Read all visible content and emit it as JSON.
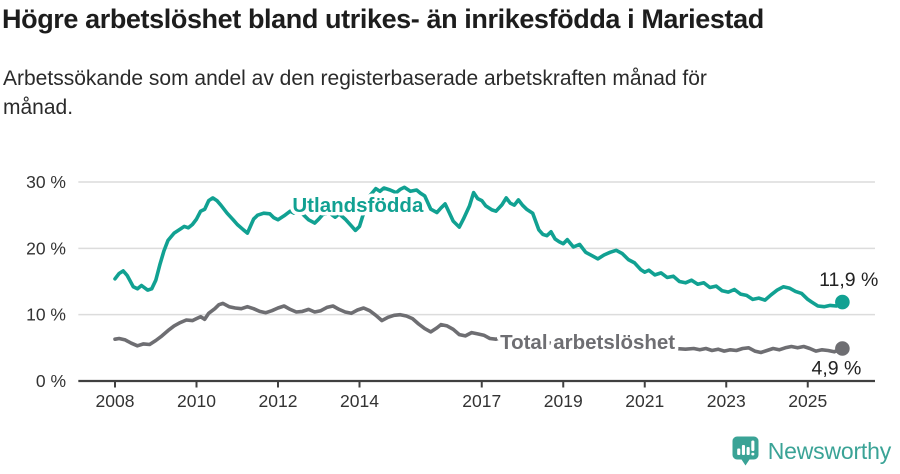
{
  "header": {
    "title": "Högre arbetslöshet bland utrikes- än inrikesfödda i Mariestad",
    "subtitle": "Arbetssökande som andel av den registerbaserade arbetskraften månad för månad.",
    "subtitle_lines": [
      "Arbetssökande som andel av den registerbaserade arbetskraften månad för",
      "månad."
    ]
  },
  "footer": {
    "brand": "Newsworthy",
    "brand_color": "#3aa396",
    "logo_icon": "bar-chart-speech-bubble-icon"
  },
  "chart_data": {
    "type": "line",
    "title": "Högre arbetslöshet bland utrikes- än inrikesfödda i Mariestad",
    "subtitle": "Arbetssökande som andel av den registerbaserade arbetskraften månad för månad.",
    "unit": "%",
    "grid": "horizontal",
    "x_axis_range": [
      2007.1,
      2026.65
    ],
    "ylim": [
      0,
      30
    ],
    "x_ticks": [
      2008,
      2010,
      2012,
      2014,
      2017,
      2019,
      2021,
      2023,
      2025
    ],
    "y_ticks": [
      {
        "value": 0,
        "label": "0 %"
      },
      {
        "value": 10,
        "label": "10 %"
      },
      {
        "value": 20,
        "label": "20 %"
      },
      {
        "value": 30,
        "label": "30 %"
      }
    ],
    "colors": {
      "utlandsfodda": "#11a192",
      "total": "#6e6e72",
      "grid": "#dcdcdc",
      "axis": "#404040",
      "value_label": "#222222"
    },
    "series": [
      {
        "name": "Utlandsfödda",
        "color": "#11a192",
        "end_label": "11,9 %",
        "last_value": 11.9,
        "annotation": {
          "text": "Utlandsfödda",
          "x": 2013.96,
          "y": 25.5,
          "anchor": "middle"
        },
        "points": [
          [
            2008.0,
            15.4
          ],
          [
            2008.1,
            16.2
          ],
          [
            2008.2,
            16.6
          ],
          [
            2008.3,
            15.9
          ],
          [
            2008.45,
            14.2
          ],
          [
            2008.55,
            13.9
          ],
          [
            2008.65,
            14.4
          ],
          [
            2008.8,
            13.7
          ],
          [
            2008.9,
            13.9
          ],
          [
            2009.0,
            15.2
          ],
          [
            2009.1,
            17.5
          ],
          [
            2009.2,
            19.6
          ],
          [
            2009.3,
            21.2
          ],
          [
            2009.45,
            22.3
          ],
          [
            2009.6,
            22.9
          ],
          [
            2009.7,
            23.3
          ],
          [
            2009.8,
            23.1
          ],
          [
            2009.9,
            23.6
          ],
          [
            2010.0,
            24.4
          ],
          [
            2010.1,
            25.6
          ],
          [
            2010.2,
            25.9
          ],
          [
            2010.3,
            27.2
          ],
          [
            2010.4,
            27.6
          ],
          [
            2010.5,
            27.2
          ],
          [
            2010.6,
            26.5
          ],
          [
            2010.75,
            25.3
          ],
          [
            2010.9,
            24.3
          ],
          [
            2011.0,
            23.6
          ],
          [
            2011.15,
            22.8
          ],
          [
            2011.25,
            22.3
          ],
          [
            2011.4,
            24.4
          ],
          [
            2011.5,
            25.0
          ],
          [
            2011.65,
            25.3
          ],
          [
            2011.8,
            25.2
          ],
          [
            2011.9,
            24.6
          ],
          [
            2012.0,
            24.3
          ],
          [
            2012.15,
            24.9
          ],
          [
            2012.3,
            25.6
          ],
          [
            2012.4,
            25.3
          ],
          [
            2012.5,
            25.9
          ],
          [
            2012.6,
            25.2
          ],
          [
            2012.75,
            24.3
          ],
          [
            2012.9,
            23.8
          ],
          [
            2013.0,
            24.4
          ],
          [
            2013.1,
            25.1
          ],
          [
            2013.25,
            25.4
          ],
          [
            2013.4,
            24.7
          ],
          [
            2013.5,
            25.2
          ],
          [
            2013.65,
            24.4
          ],
          [
            2013.8,
            23.4
          ],
          [
            2013.9,
            22.7
          ],
          [
            2014.0,
            23.3
          ],
          [
            2014.1,
            25.3
          ],
          [
            2014.25,
            27.9
          ],
          [
            2014.4,
            29.0
          ],
          [
            2014.5,
            28.6
          ],
          [
            2014.6,
            29.1
          ],
          [
            2014.75,
            28.8
          ],
          [
            2014.9,
            28.4
          ],
          [
            2015.0,
            28.9
          ],
          [
            2015.1,
            29.2
          ],
          [
            2015.25,
            28.6
          ],
          [
            2015.4,
            28.8
          ],
          [
            2015.5,
            28.3
          ],
          [
            2015.6,
            27.9
          ],
          [
            2015.75,
            25.9
          ],
          [
            2015.9,
            25.4
          ],
          [
            2016.0,
            26.1
          ],
          [
            2016.1,
            26.7
          ],
          [
            2016.2,
            25.4
          ],
          [
            2016.3,
            24.1
          ],
          [
            2016.45,
            23.2
          ],
          [
            2016.55,
            24.4
          ],
          [
            2016.7,
            26.4
          ],
          [
            2016.8,
            28.4
          ],
          [
            2016.9,
            27.5
          ],
          [
            2017.0,
            27.2
          ],
          [
            2017.1,
            26.4
          ],
          [
            2017.25,
            25.8
          ],
          [
            2017.35,
            25.6
          ],
          [
            2017.5,
            26.6
          ],
          [
            2017.6,
            27.6
          ],
          [
            2017.7,
            26.8
          ],
          [
            2017.8,
            26.5
          ],
          [
            2017.9,
            27.3
          ],
          [
            2018.0,
            26.5
          ],
          [
            2018.1,
            25.9
          ],
          [
            2018.25,
            25.3
          ],
          [
            2018.4,
            22.8
          ],
          [
            2018.5,
            22.1
          ],
          [
            2018.6,
            21.9
          ],
          [
            2018.7,
            22.5
          ],
          [
            2018.8,
            21.4
          ],
          [
            2018.9,
            21.0
          ],
          [
            2019.0,
            20.7
          ],
          [
            2019.1,
            21.3
          ],
          [
            2019.25,
            20.2
          ],
          [
            2019.4,
            20.6
          ],
          [
            2019.55,
            19.4
          ],
          [
            2019.7,
            18.9
          ],
          [
            2019.85,
            18.4
          ],
          [
            2020.0,
            19.0
          ],
          [
            2020.15,
            19.4
          ],
          [
            2020.3,
            19.7
          ],
          [
            2020.45,
            19.2
          ],
          [
            2020.6,
            18.3
          ],
          [
            2020.75,
            17.8
          ],
          [
            2020.9,
            16.8
          ],
          [
            2021.0,
            16.4
          ],
          [
            2021.1,
            16.7
          ],
          [
            2021.25,
            16.0
          ],
          [
            2021.4,
            16.3
          ],
          [
            2021.55,
            15.6
          ],
          [
            2021.7,
            15.8
          ],
          [
            2021.85,
            15.0
          ],
          [
            2022.0,
            14.8
          ],
          [
            2022.15,
            15.2
          ],
          [
            2022.3,
            14.6
          ],
          [
            2022.45,
            14.8
          ],
          [
            2022.6,
            14.1
          ],
          [
            2022.75,
            14.3
          ],
          [
            2022.9,
            13.6
          ],
          [
            2023.05,
            13.4
          ],
          [
            2023.2,
            13.8
          ],
          [
            2023.35,
            13.1
          ],
          [
            2023.5,
            12.9
          ],
          [
            2023.65,
            12.3
          ],
          [
            2023.8,
            12.5
          ],
          [
            2023.95,
            12.2
          ],
          [
            2024.1,
            13.0
          ],
          [
            2024.25,
            13.7
          ],
          [
            2024.4,
            14.2
          ],
          [
            2024.55,
            14.0
          ],
          [
            2024.7,
            13.5
          ],
          [
            2024.85,
            13.2
          ],
          [
            2025.0,
            12.3
          ],
          [
            2025.1,
            11.9
          ],
          [
            2025.25,
            11.3
          ],
          [
            2025.4,
            11.2
          ],
          [
            2025.55,
            11.4
          ],
          [
            2025.7,
            11.3
          ],
          [
            2025.85,
            11.9
          ]
        ]
      },
      {
        "name": "Total arbetslöshet",
        "color": "#6e6e72",
        "end_label": "4,9 %",
        "last_value": 4.9,
        "annotation": {
          "text": "Total arbetslöshet",
          "x": 2017.45,
          "y": 4.82,
          "anchor": "start"
        },
        "points": [
          [
            2008.0,
            6.3
          ],
          [
            2008.1,
            6.4
          ],
          [
            2008.25,
            6.2
          ],
          [
            2008.4,
            5.7
          ],
          [
            2008.55,
            5.3
          ],
          [
            2008.7,
            5.6
          ],
          [
            2008.85,
            5.5
          ],
          [
            2009.0,
            6.1
          ],
          [
            2009.15,
            6.8
          ],
          [
            2009.3,
            7.6
          ],
          [
            2009.45,
            8.3
          ],
          [
            2009.6,
            8.8
          ],
          [
            2009.75,
            9.2
          ],
          [
            2009.9,
            9.1
          ],
          [
            2010.0,
            9.4
          ],
          [
            2010.1,
            9.7
          ],
          [
            2010.2,
            9.3
          ],
          [
            2010.3,
            10.2
          ],
          [
            2010.45,
            10.9
          ],
          [
            2010.55,
            11.5
          ],
          [
            2010.65,
            11.7
          ],
          [
            2010.8,
            11.2
          ],
          [
            2010.95,
            11.0
          ],
          [
            2011.1,
            10.9
          ],
          [
            2011.25,
            11.2
          ],
          [
            2011.4,
            10.9
          ],
          [
            2011.55,
            10.5
          ],
          [
            2011.7,
            10.3
          ],
          [
            2011.85,
            10.6
          ],
          [
            2012.0,
            11.0
          ],
          [
            2012.15,
            11.3
          ],
          [
            2012.3,
            10.8
          ],
          [
            2012.45,
            10.4
          ],
          [
            2012.6,
            10.5
          ],
          [
            2012.75,
            10.8
          ],
          [
            2012.9,
            10.4
          ],
          [
            2013.05,
            10.6
          ],
          [
            2013.2,
            11.1
          ],
          [
            2013.35,
            11.3
          ],
          [
            2013.5,
            10.8
          ],
          [
            2013.65,
            10.4
          ],
          [
            2013.8,
            10.2
          ],
          [
            2013.95,
            10.7
          ],
          [
            2014.1,
            11.0
          ],
          [
            2014.25,
            10.6
          ],
          [
            2014.4,
            9.9
          ],
          [
            2014.55,
            9.1
          ],
          [
            2014.7,
            9.6
          ],
          [
            2014.85,
            9.9
          ],
          [
            2015.0,
            10.0
          ],
          [
            2015.15,
            9.8
          ],
          [
            2015.3,
            9.4
          ],
          [
            2015.45,
            8.6
          ],
          [
            2015.6,
            7.9
          ],
          [
            2015.75,
            7.4
          ],
          [
            2015.9,
            8.0
          ],
          [
            2016.0,
            8.5
          ],
          [
            2016.15,
            8.3
          ],
          [
            2016.3,
            7.8
          ],
          [
            2016.45,
            7.0
          ],
          [
            2016.6,
            6.8
          ],
          [
            2016.75,
            7.3
          ],
          [
            2016.9,
            7.1
          ],
          [
            2017.05,
            6.9
          ],
          [
            2017.2,
            6.4
          ],
          [
            2017.35,
            6.3
          ],
          [
            2017.5,
            6.6
          ],
          [
            2017.65,
            6.4
          ],
          [
            2017.85,
            6.2
          ],
          [
            2018.0,
            6.1
          ],
          [
            2018.25,
            6.0
          ],
          [
            2018.5,
            5.8
          ],
          [
            2018.75,
            5.7
          ],
          [
            2019.0,
            5.6
          ],
          [
            2019.25,
            5.4
          ],
          [
            2019.5,
            5.3
          ],
          [
            2019.75,
            5.4
          ],
          [
            2020.0,
            5.8
          ],
          [
            2020.25,
            6.0
          ],
          [
            2020.5,
            5.8
          ],
          [
            2020.75,
            5.6
          ],
          [
            2021.0,
            5.4
          ],
          [
            2021.25,
            5.2
          ],
          [
            2021.5,
            5.0
          ],
          [
            2021.75,
            4.9
          ],
          [
            2022.0,
            4.8
          ],
          [
            2022.2,
            4.9
          ],
          [
            2022.35,
            4.7
          ],
          [
            2022.5,
            4.9
          ],
          [
            2022.65,
            4.6
          ],
          [
            2022.8,
            4.8
          ],
          [
            2022.95,
            4.5
          ],
          [
            2023.1,
            4.7
          ],
          [
            2023.25,
            4.6
          ],
          [
            2023.4,
            4.9
          ],
          [
            2023.55,
            5.0
          ],
          [
            2023.7,
            4.5
          ],
          [
            2023.85,
            4.3
          ],
          [
            2024.0,
            4.6
          ],
          [
            2024.15,
            4.9
          ],
          [
            2024.3,
            4.7
          ],
          [
            2024.45,
            5.0
          ],
          [
            2024.6,
            5.2
          ],
          [
            2024.75,
            5.0
          ],
          [
            2024.9,
            5.2
          ],
          [
            2025.05,
            4.9
          ],
          [
            2025.2,
            4.5
          ],
          [
            2025.35,
            4.7
          ],
          [
            2025.5,
            4.6
          ],
          [
            2025.65,
            4.4
          ],
          [
            2025.85,
            4.9
          ]
        ]
      }
    ],
    "legend_position": "inline-labels"
  }
}
